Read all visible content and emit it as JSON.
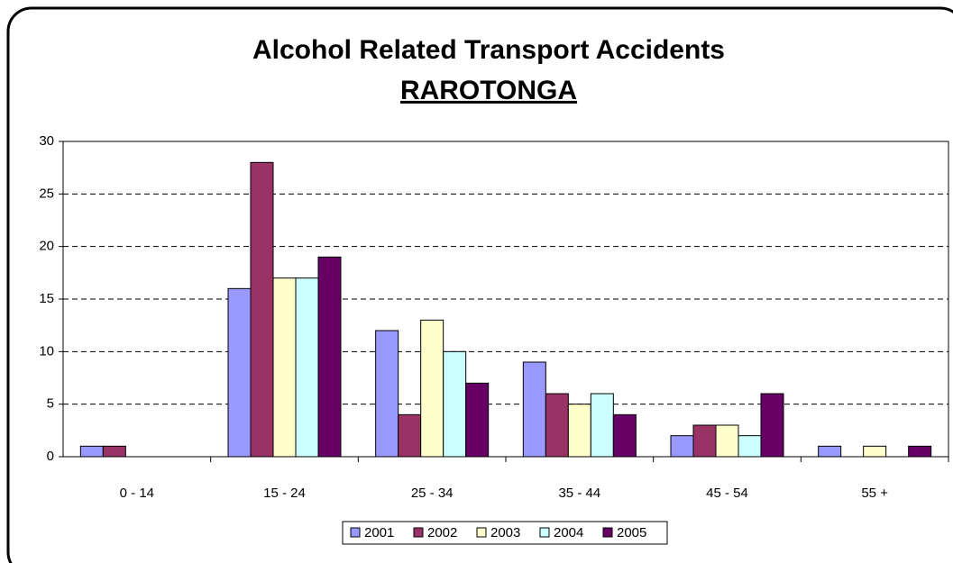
{
  "chart_data": {
    "type": "bar",
    "title": "Alcohol Related Transport Accidents",
    "subtitle": "RAROTONGA",
    "categories": [
      "0 - 14",
      "15 - 24",
      "25 - 34",
      "35 - 44",
      "45 - 54",
      "55 +"
    ],
    "series": [
      {
        "name": "2001",
        "color": "#9999ff",
        "values": [
          1,
          16,
          12,
          9,
          2,
          1
        ]
      },
      {
        "name": "2002",
        "color": "#993366",
        "values": [
          1,
          28,
          4,
          6,
          3,
          0
        ]
      },
      {
        "name": "2003",
        "color": "#ffffcc",
        "values": [
          0,
          17,
          13,
          5,
          3,
          1
        ]
      },
      {
        "name": "2004",
        "color": "#ccffff",
        "values": [
          0,
          17,
          10,
          6,
          2,
          0
        ]
      },
      {
        "name": "2005",
        "color": "#660066",
        "values": [
          0,
          19,
          7,
          4,
          6,
          1
        ]
      }
    ],
    "ylim": [
      0,
      30
    ],
    "yticks": [
      0,
      5,
      10,
      15,
      20,
      25,
      30
    ],
    "grid": true,
    "legend": "bottom"
  }
}
